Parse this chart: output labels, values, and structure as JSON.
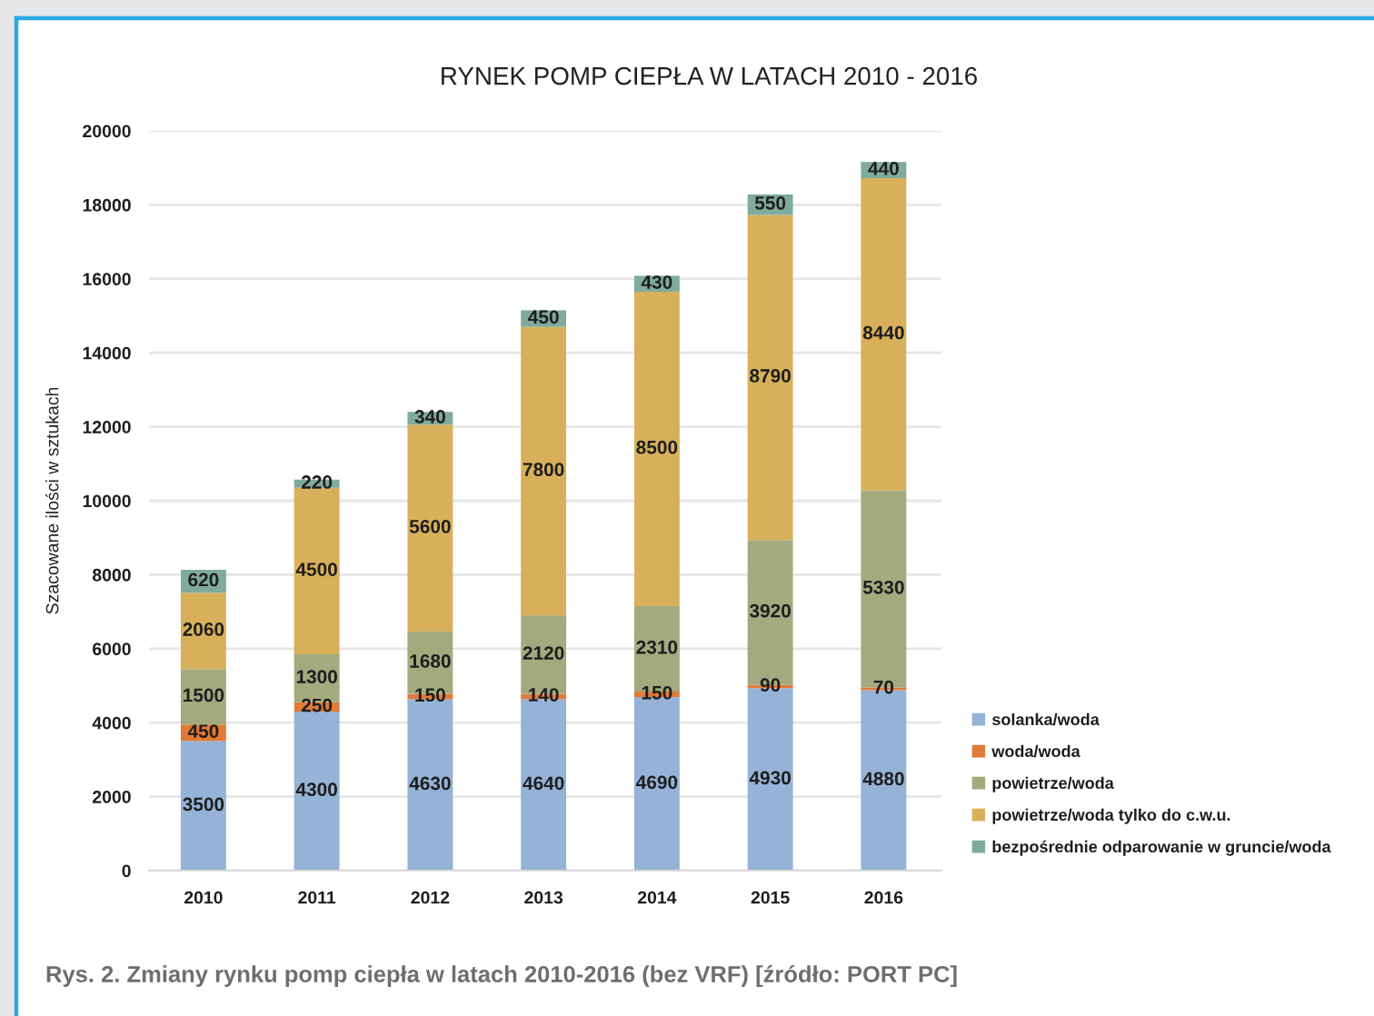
{
  "chart_data": {
    "type": "bar",
    "title": "RYNEK POMP CIEPŁA W LATACH 2010 - 2016",
    "ylabel": "Szacowane ilości w sztukach",
    "annotations": [
      "Rys. 2. Zmiany rynku pomp ciepła w latach 2010-2016 (bez VRF) [źródło: PORT PC]"
    ],
    "categories": [
      "2010",
      "2011",
      "2012",
      "2013",
      "2014",
      "2015",
      "2016"
    ],
    "stacked": true,
    "series": [
      {
        "name": "solanka/woda",
        "color": "#95b3d7",
        "values": [
          3500,
          4300,
          4630,
          4640,
          4690,
          4930,
          4880
        ]
      },
      {
        "name": "woda/woda",
        "color": "#e07b39",
        "values": [
          450,
          250,
          150,
          140,
          150,
          90,
          70
        ]
      },
      {
        "name": "powietrze/woda",
        "color": "#a4aa7d",
        "values": [
          1500,
          1300,
          1680,
          2120,
          2310,
          3920,
          5330
        ]
      },
      {
        "name": "powietrze/woda tylko do c.w.u.",
        "color": "#d8b05b",
        "values": [
          2060,
          4500,
          5600,
          7800,
          8500,
          8790,
          8440
        ]
      },
      {
        "name": "bezpośrednie odparowanie w gruncie/woda",
        "color": "#7fab9c",
        "values": [
          620,
          220,
          340,
          450,
          430,
          550,
          440
        ]
      }
    ],
    "ylim": [
      0,
      20000
    ],
    "yticks": [
      0,
      2000,
      4000,
      6000,
      8000,
      10000,
      12000,
      14000,
      16000,
      18000,
      20000
    ],
    "grid": "y",
    "legend": "right",
    "data_labels": true
  }
}
